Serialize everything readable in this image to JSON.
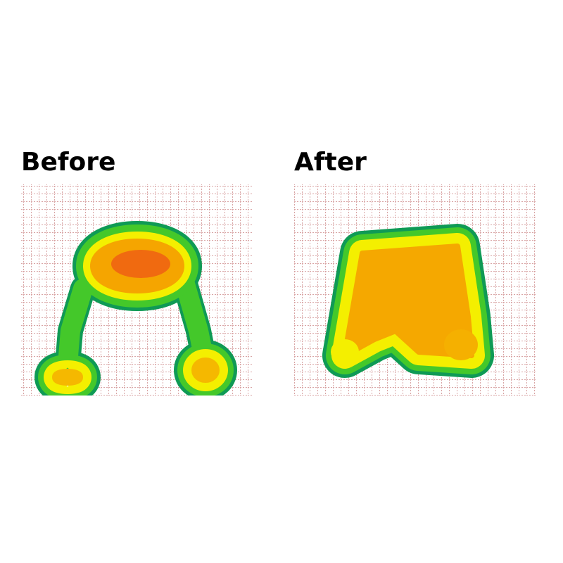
{
  "panels": [
    {
      "label": "Before"
    },
    {
      "label": "After"
    }
  ]
}
